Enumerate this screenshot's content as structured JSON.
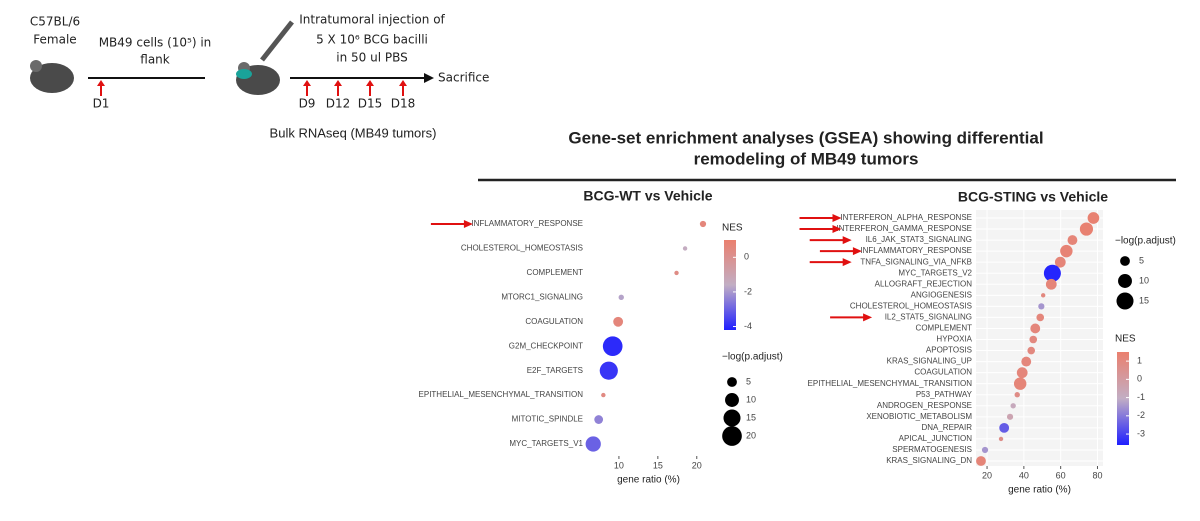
{
  "diagram": {
    "strain": "C57BL/6",
    "sex": "Female",
    "implant": [
      "MB49 cells (10⁵) in",
      "flank"
    ],
    "injection": [
      "Intratumoral injection of",
      "5 X 10⁶ BCG bacilli",
      "in 50 ul PBS"
    ],
    "end": "Sacrifice",
    "days": [
      "D1",
      "D9",
      "D12",
      "D15",
      "D18"
    ],
    "caption": "Bulk RNAseq (MB49 tumors)"
  },
  "heading": [
    "Gene-set enrichment analyses (GSEA) showing differential",
    "remodeling of MB49 tumors"
  ],
  "chart_data": [
    {
      "type": "dot",
      "title": "BCG-WT vs Vehicle",
      "xlabel": "gene ratio (%)",
      "categories": [
        "INFLAMMATORY_RESPONSE",
        "CHOLESTEROL_HOMEOSTASIS",
        "COMPLEMENT",
        "MTORC1_SIGNALING",
        "COAGULATION",
        "G2M_CHECKPOINT",
        "E2F_TARGETS",
        "EPITHELIAL_MESENCHYMAL_TRANSITION",
        "MITOTIC_SPINDLE",
        "MYC_TARGETS_V1"
      ],
      "values": [
        20.8,
        18.5,
        17.4,
        10.3,
        9.9,
        9.2,
        8.7,
        8.0,
        7.4,
        6.7
      ],
      "sizes": [
        2,
        1,
        1,
        1.5,
        5,
        20,
        17,
        1,
        4,
        12
      ],
      "nes": [
        0.6,
        -1.5,
        0.3,
        -1.8,
        0.6,
        -4,
        -3.8,
        0.4,
        -2.4,
        -3
      ],
      "xlim": [
        5.9,
        21.7
      ],
      "xticks": [
        10,
        15,
        20
      ],
      "grid": false,
      "highlighted": [
        0
      ],
      "size_legend": {
        "title": "−log(p.adjust)",
        "values": [
          5,
          10,
          15,
          20
        ]
      },
      "color_legend": {
        "title": "NES",
        "lim": [
          -4.2,
          1
        ],
        "ticks": [
          0,
          -2,
          -4
        ],
        "colors": [
          "#1f1fff",
          "#c2aec4",
          "#ea7f6e"
        ]
      }
    },
    {
      "type": "dot",
      "title": "BCG-STING vs Vehicle",
      "xlabel": "gene ratio (%)",
      "categories": [
        "INTERFERON_ALPHA_RESPONSE",
        "INTERFERON_GAMMA_RESPONSE",
        "IL6_JAK_STAT3_SIGNALING",
        "INFLAMMATORY_RESPONSE",
        "TNFA_SIGNALING_VIA_NFKB",
        "MYC_TARGETS_V2",
        "ALLOGRAFT_REJECTION",
        "ANGIOGENESIS",
        "CHOLESTEROL_HOMEOSTASIS",
        "IL2_STAT5_SIGNALING",
        "COMPLEMENT",
        "HYPOXIA",
        "APOPTOSIS",
        "KRAS_SIGNALING_UP",
        "COAGULATION",
        "EPITHELIAL_MESENCHYMAL_TRANSITION",
        "P53_PATHWAY",
        "ANDROGEN_RESPONSE",
        "XENOBIOTIC_METABOLISM",
        "DNA_REPAIR",
        "APICAL_JUNCTION",
        "SPERMATOGENESIS",
        "KRAS_SIGNALING_DN"
      ],
      "values": [
        77.8,
        74,
        66.4,
        63.1,
        59.8,
        55.5,
        54.9,
        50.5,
        49.5,
        48.9,
        46.2,
        45.1,
        44,
        41.3,
        39.1,
        38,
        36.4,
        34.2,
        32.5,
        29.3,
        27.6,
        18.9,
        16.7
      ],
      "sizes": [
        7,
        9,
        5,
        8,
        6,
        15,
        6,
        1,
        2,
        3,
        5,
        3,
        3,
        5,
        6,
        8,
        1.5,
        1.5,
        2,
        5,
        1,
        2,
        5
      ],
      "nes": [
        1.4,
        1.4,
        1.2,
        1.3,
        1.2,
        -3.5,
        1.2,
        1,
        -1.5,
        1.1,
        1.1,
        1,
        1,
        1.1,
        1.1,
        1.2,
        0.8,
        -0.8,
        -0.5,
        -2.5,
        0.7,
        -1.5,
        1.2
      ],
      "xlim": [
        14,
        83
      ],
      "xticks": [
        20,
        40,
        60,
        80
      ],
      "grid": true,
      "highlighted": [
        0,
        1,
        2,
        3,
        4,
        9
      ],
      "size_legend": {
        "title": "−log(p.adjust)",
        "values": [
          5,
          10,
          15
        ]
      },
      "color_legend": {
        "title": "NES",
        "lim": [
          -3.6,
          1.5
        ],
        "ticks": [
          1,
          0,
          -1,
          -2,
          -3
        ],
        "colors": [
          "#1f1fff",
          "#c2aec4",
          "#ea7f6e"
        ]
      }
    }
  ]
}
